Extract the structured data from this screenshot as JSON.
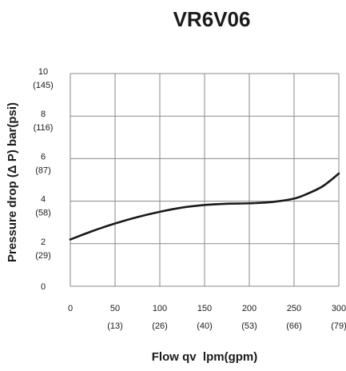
{
  "chart_data": {
    "type": "line",
    "title": "VR6V06",
    "xlabel": "Flow qv  lpm(gpm)",
    "ylabel": "Pressure drop (Δ P) bar(psi)",
    "xlim": [
      0,
      300
    ],
    "ylim": [
      0,
      10
    ],
    "grid": true,
    "legend": "none",
    "x_ticks": [
      {
        "value": 0,
        "label": "0",
        "sub": ""
      },
      {
        "value": 50,
        "label": "50",
        "sub": "(13)"
      },
      {
        "value": 100,
        "label": "100",
        "sub": "(26)"
      },
      {
        "value": 150,
        "label": "150",
        "sub": "(40)"
      },
      {
        "value": 200,
        "label": "200",
        "sub": "(53)"
      },
      {
        "value": 250,
        "label": "250",
        "sub": "(66)"
      },
      {
        "value": 300,
        "label": "300",
        "sub": "(79)"
      }
    ],
    "y_ticks": [
      {
        "value": 0,
        "label": "0",
        "sub": ""
      },
      {
        "value": 2,
        "label": "2",
        "sub": "(29)"
      },
      {
        "value": 4,
        "label": "4",
        "sub": "(58)"
      },
      {
        "value": 6,
        "label": "6",
        "sub": "(87)"
      },
      {
        "value": 8,
        "label": "8",
        "sub": "(116)"
      },
      {
        "value": 10,
        "label": "10",
        "sub": "(145)"
      }
    ],
    "series": [
      {
        "color": "#1a1a1a",
        "x": [
          0,
          25,
          50,
          75,
          100,
          125,
          150,
          175,
          200,
          225,
          250,
          265,
          280,
          290,
          300
        ],
        "y": [
          2.2,
          2.6,
          2.95,
          3.25,
          3.5,
          3.7,
          3.82,
          3.88,
          3.9,
          3.96,
          4.12,
          4.35,
          4.65,
          4.95,
          5.3
        ]
      }
    ]
  }
}
